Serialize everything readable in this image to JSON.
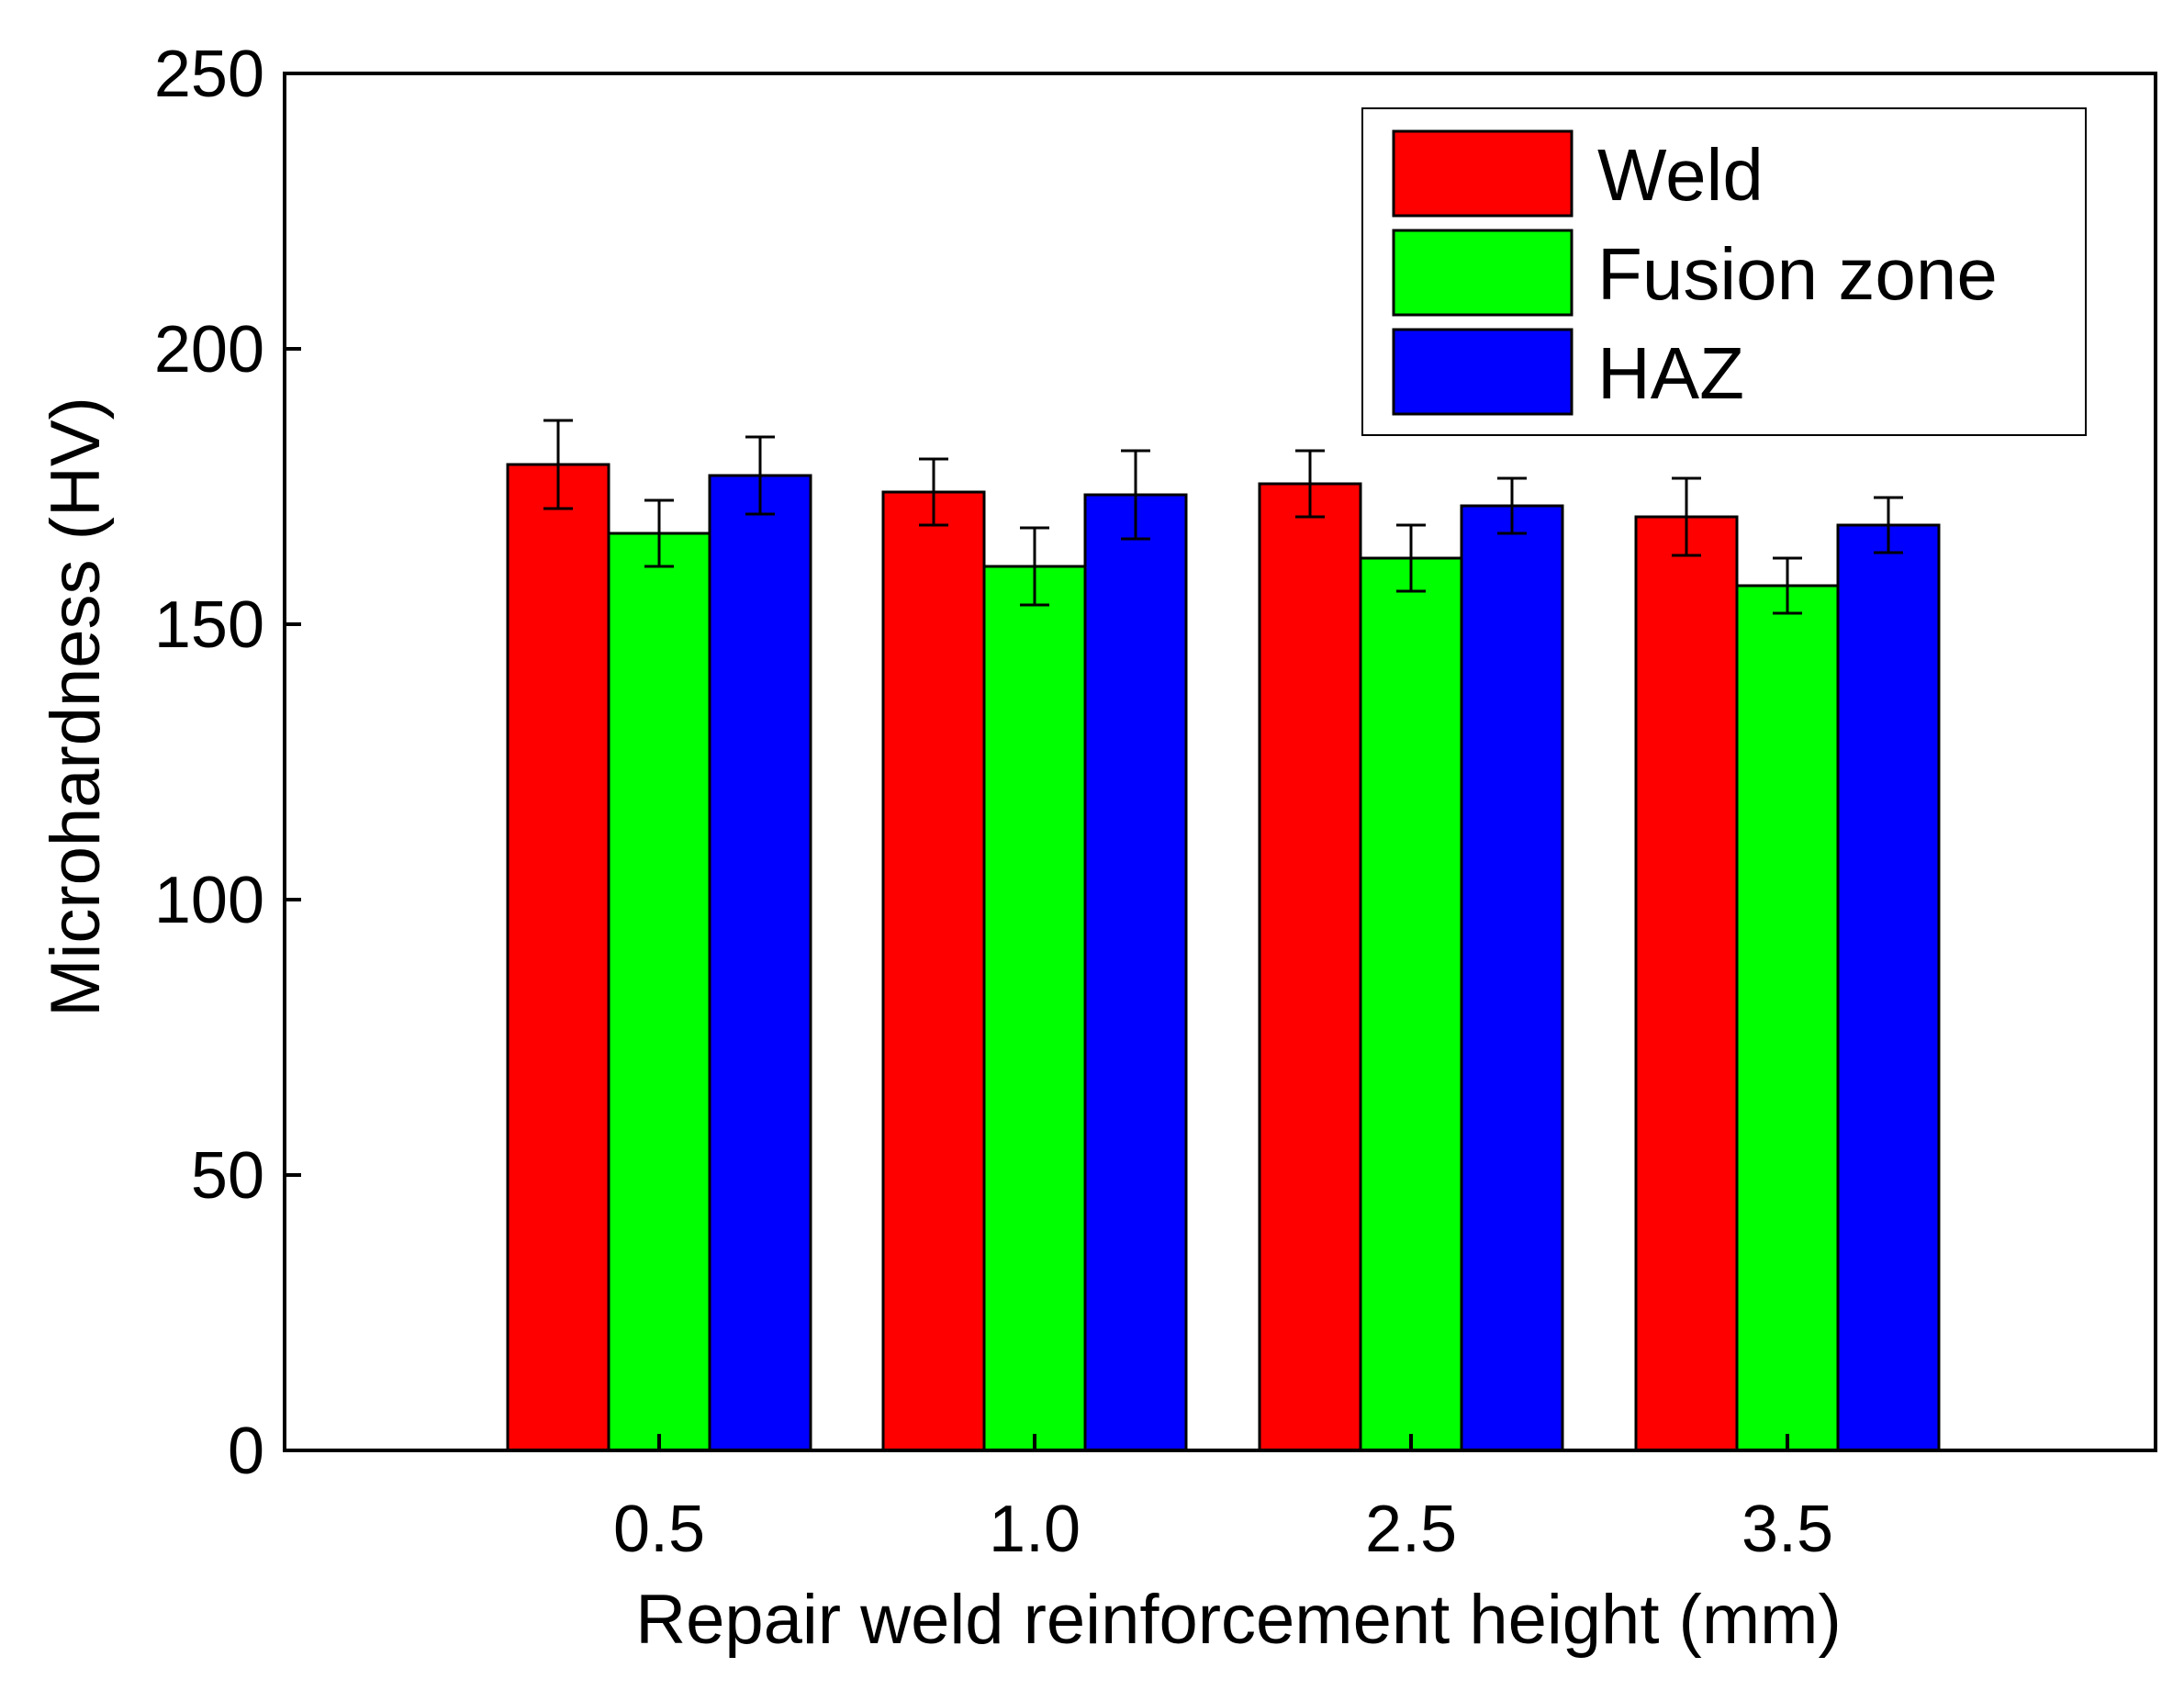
{
  "chart_data": {
    "type": "bar",
    "title": "",
    "xlabel": "Repair weld reinforcement height (mm)",
    "ylabel": "Microhardness (HV)",
    "ylim": [
      0,
      250
    ],
    "yticks": [
      0,
      50,
      100,
      150,
      200,
      250
    ],
    "ytick_labels": [
      "0",
      "50",
      "100",
      "150",
      "200",
      "250"
    ],
    "categories": [
      "0.5",
      "1.0",
      "2.5",
      "3.5"
    ],
    "legend_position": "top-right",
    "grid": false,
    "series": [
      {
        "name": "Weld",
        "color": "#ff0000",
        "values": [
          179,
          174,
          175.5,
          169.5
        ],
        "errors": [
          8,
          6,
          6,
          7
        ]
      },
      {
        "name": "Fusion zone",
        "color": "#00ff00",
        "values": [
          166.5,
          160.5,
          162,
          157
        ],
        "errors": [
          6,
          7,
          6,
          5
        ]
      },
      {
        "name": "HAZ",
        "color": "#0000ff",
        "values": [
          177,
          173.5,
          171.5,
          168
        ],
        "errors": [
          7,
          8,
          5,
          5
        ]
      }
    ]
  }
}
